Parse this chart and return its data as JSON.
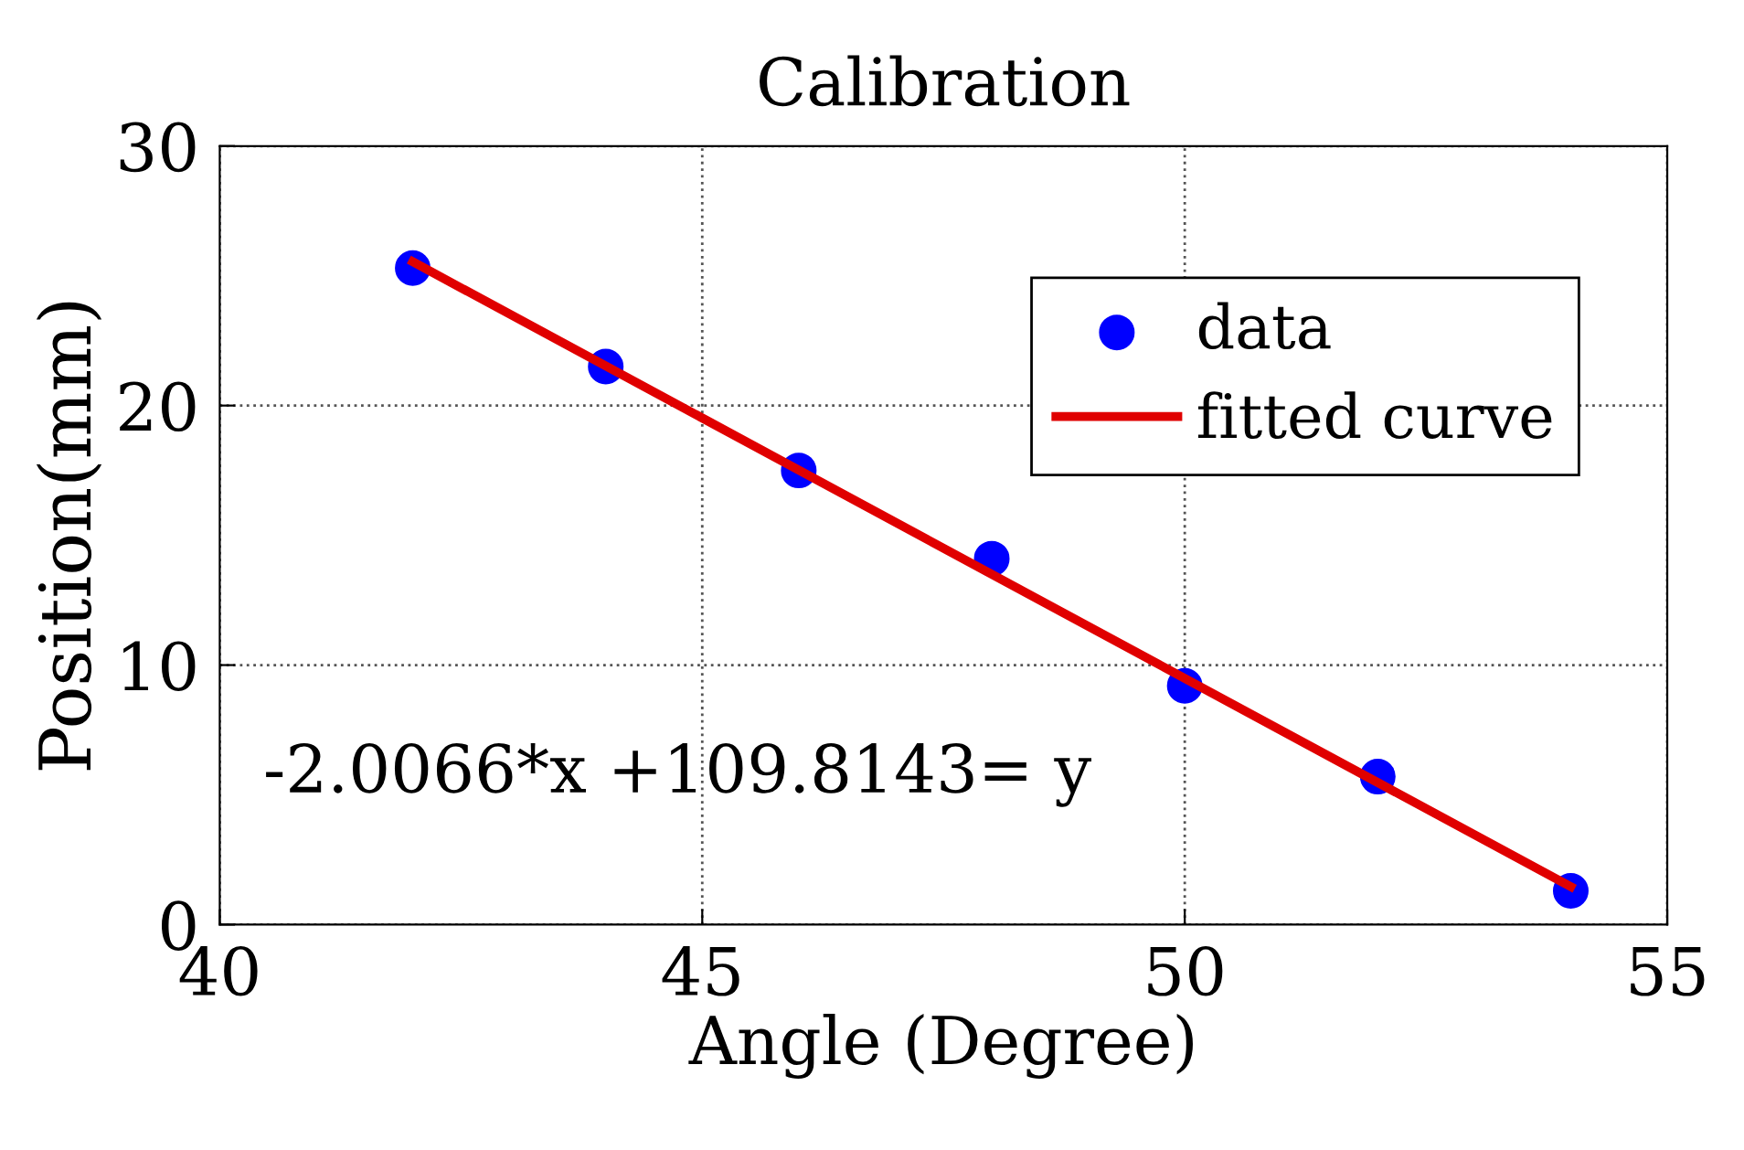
{
  "chart_data": {
    "type": "scatter",
    "title": "Calibration",
    "xlabel": "Angle (Degree)",
    "ylabel": "Position(mm)",
    "series": [
      {
        "name": "data",
        "color": "#0000ff",
        "marker": "circle",
        "x": [
          42,
          44,
          46,
          48,
          50,
          52,
          54
        ],
        "values": [
          25.3,
          21.5,
          17.5,
          14.1,
          9.2,
          5.7,
          1.3
        ]
      },
      {
        "name": "fitted curve",
        "type": "line",
        "color": "#e00000",
        "line_style": "solid",
        "x": [
          42,
          54
        ],
        "values": [
          25.54,
          1.46
        ]
      }
    ],
    "annotations": [
      "-2.0066*x +109.8143= y"
    ],
    "xlim": [
      40,
      55
    ],
    "xticks": [
      40,
      45,
      50,
      55
    ],
    "ylim": [
      0,
      30
    ],
    "yticks": [
      0,
      10,
      20,
      30
    ],
    "grid": true,
    "legend": "top right"
  }
}
